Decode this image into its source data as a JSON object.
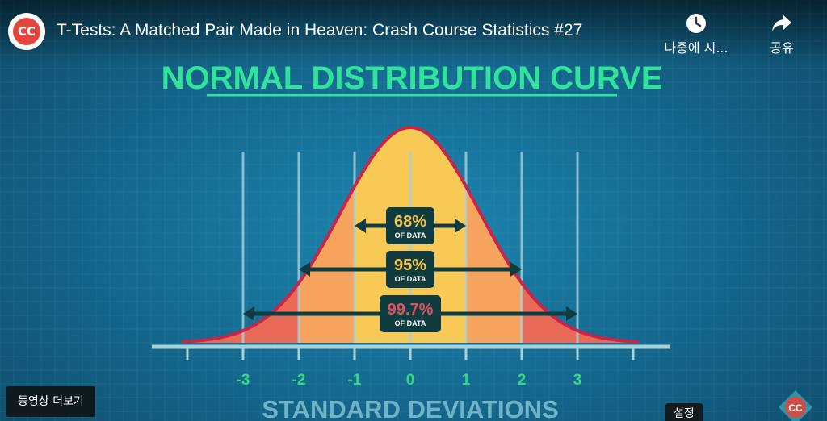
{
  "player": {
    "channel_avatar_text": "CC",
    "video_title": "T-Tests: A Matched Pair Made in Heaven: Crash Course Statistics #27",
    "watch_later_label": "나중에 시...",
    "share_label": "공유",
    "more_videos_label": "동영상 더보기",
    "settings_tooltip": "설정",
    "watermark_text": "CC"
  },
  "slide": {
    "title": "NORMAL DISTRIBUTION CURVE",
    "x_axis_label": "STANDARD DEVIATIONS",
    "ticks": [
      "-3",
      "-2",
      "-1",
      "0",
      "1",
      "2",
      "3"
    ],
    "bands": [
      {
        "percent": "68%",
        "sub": "OF DATA",
        "sd": 1,
        "text_color": "#f6c64b"
      },
      {
        "percent": "95%",
        "sub": "OF DATA",
        "sd": 2,
        "text_color": "#f6c64b"
      },
      {
        "percent": "99.7%",
        "sub": "OF DATA",
        "sd": 3,
        "text_color": "#e2505b"
      }
    ],
    "colors": {
      "title": "#2fe39a",
      "curve_outline": "#c7254a",
      "fill_center": "#f8c955",
      "fill_mid": "#f6a35e",
      "fill_tail": "#ea6a58",
      "band_label_bg": "#103b3f",
      "axis": "#a7d2d8",
      "tick_label": "#36d97e"
    }
  }
}
